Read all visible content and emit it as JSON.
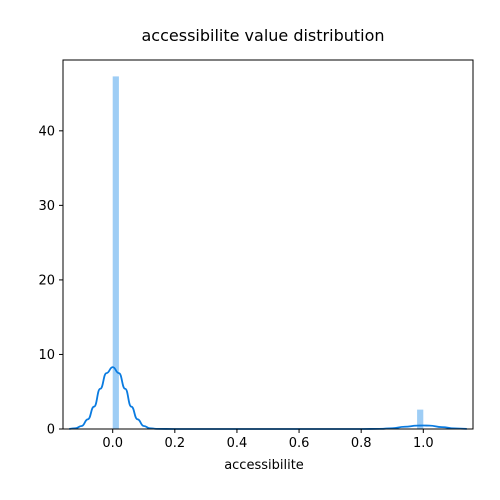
{
  "chart_data": {
    "type": "bar",
    "title": "accessibilite value distribution",
    "xlabel": "accessibilite",
    "ylabel": "",
    "xlim": [
      -0.16,
      1.16
    ],
    "ylim": [
      0,
      49.5
    ],
    "xticks": [
      "0.0",
      "0.2",
      "0.4",
      "0.6",
      "0.8",
      "1.0"
    ],
    "xtick_values": [
      0.0,
      0.2,
      0.4,
      0.6,
      0.8,
      1.0
    ],
    "yticks": [
      "0",
      "10",
      "20",
      "30",
      "40"
    ],
    "ytick_values": [
      0,
      10,
      20,
      30,
      40
    ],
    "grid": false,
    "histogram": {
      "bin_width": 0.02,
      "bins": [
        {
          "x0": 0.0,
          "x1": 0.02,
          "height": 47.3
        },
        {
          "x0": 0.98,
          "x1": 1.0,
          "height": 2.6
        }
      ],
      "color": "#9ecdf5"
    },
    "kde": {
      "color": "#0a7be0",
      "x": [
        -0.14,
        -0.12,
        -0.1,
        -0.08,
        -0.06,
        -0.04,
        -0.02,
        0.0,
        0.02,
        0.04,
        0.06,
        0.08,
        0.1,
        0.12,
        0.14,
        0.2,
        0.4,
        0.6,
        0.8,
        0.86,
        0.9,
        0.94,
        0.98,
        1.0,
        1.02,
        1.06,
        1.1,
        1.14
      ],
      "y": [
        0.02,
        0.1,
        0.4,
        1.3,
        3.0,
        5.4,
        7.5,
        8.3,
        7.5,
        5.4,
        3.0,
        1.3,
        0.4,
        0.1,
        0.02,
        0.0,
        0.0,
        0.0,
        0.0,
        0.02,
        0.1,
        0.3,
        0.45,
        0.47,
        0.45,
        0.25,
        0.08,
        0.02
      ]
    }
  }
}
